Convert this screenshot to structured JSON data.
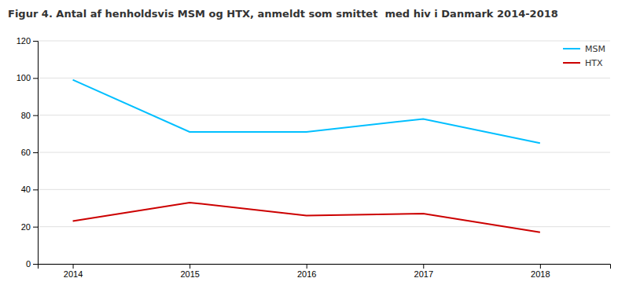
{
  "chart_data": {
    "type": "line",
    "title": "Figur 4. Antal af henholdsvis MSM og HTX, anmeldt som smittet  med hiv i Danmark 2014-2018",
    "x": [
      2014,
      2015,
      2016,
      2017,
      2018
    ],
    "series": [
      {
        "name": "MSM",
        "color": "#00BFFF",
        "values": [
          99,
          71,
          71,
          78,
          65
        ]
      },
      {
        "name": "HTX",
        "color": "#CC0000",
        "values": [
          23,
          33,
          26,
          27,
          17
        ]
      }
    ],
    "xlim": [
      2013.7,
      2018.6
    ],
    "xticks": [
      2014,
      2015,
      2016,
      2017,
      2018
    ],
    "ylim": [
      0,
      120
    ],
    "yticks": [
      0,
      20,
      40,
      60,
      80,
      100,
      120
    ],
    "grid": "y",
    "legend": "upper right"
  }
}
